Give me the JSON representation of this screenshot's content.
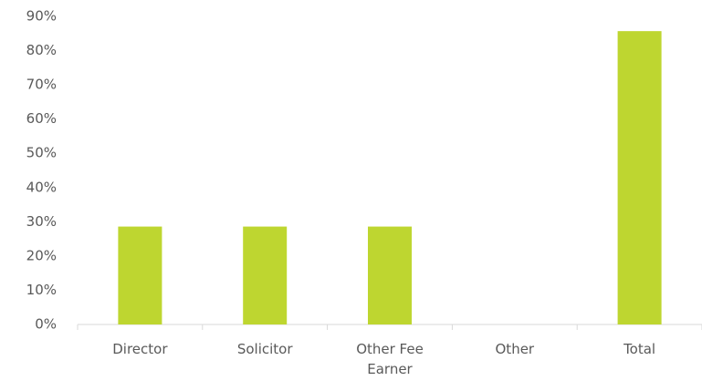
{
  "chart_data": {
    "type": "bar",
    "categories": [
      "Director",
      "Solicitor",
      "Other Fee Earner",
      "Other",
      "Total"
    ],
    "values": [
      28.6,
      28.6,
      28.6,
      0,
      85.7
    ],
    "color": "#bed630",
    "ylim": [
      0,
      90
    ],
    "yticks": [
      {
        "value": 0,
        "label": "0%"
      },
      {
        "value": 10,
        "label": "10%"
      },
      {
        "value": 20,
        "label": "20%"
      },
      {
        "value": 30,
        "label": "30%"
      },
      {
        "value": 40,
        "label": "40%"
      },
      {
        "value": 50,
        "label": "50%"
      },
      {
        "value": 60,
        "label": "60%"
      },
      {
        "value": 70,
        "label": "70%"
      },
      {
        "value": 80,
        "label": "80%"
      },
      {
        "value": 90,
        "label": "90%"
      }
    ],
    "grid": false
  }
}
